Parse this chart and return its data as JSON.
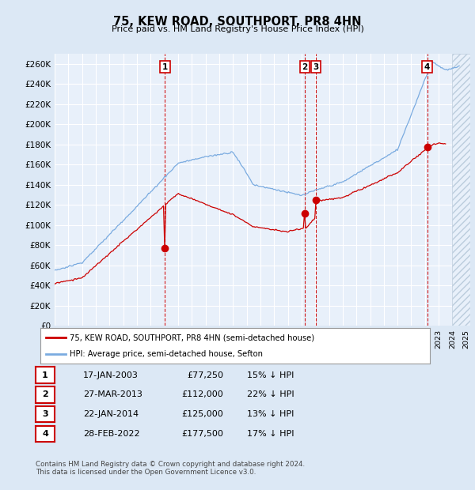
{
  "title": "75, KEW ROAD, SOUTHPORT, PR8 4HN",
  "subtitle": "Price paid vs. HM Land Registry's House Price Index (HPI)",
  "xlim_start": 1995.0,
  "xlim_end": 2025.3,
  "ylim": [
    0,
    270000
  ],
  "yticks": [
    0,
    20000,
    40000,
    60000,
    80000,
    100000,
    120000,
    140000,
    160000,
    180000,
    200000,
    220000,
    240000,
    260000
  ],
  "ytick_labels": [
    "£0",
    "£20K",
    "£40K",
    "£60K",
    "£80K",
    "£100K",
    "£120K",
    "£140K",
    "£160K",
    "£180K",
    "£200K",
    "£220K",
    "£240K",
    "£260K"
  ],
  "sale_dates": [
    2003.04,
    2013.24,
    2014.06,
    2022.16
  ],
  "sale_prices": [
    77250,
    112000,
    125000,
    177500
  ],
  "sale_labels": [
    "1",
    "2",
    "3",
    "4"
  ],
  "sale_date_strs": [
    "17-JAN-2003",
    "27-MAR-2013",
    "22-JAN-2014",
    "28-FEB-2022"
  ],
  "sale_price_strs": [
    "£77,250",
    "£112,000",
    "£125,000",
    "£177,500"
  ],
  "sale_hpi_strs": [
    "15% ↓ HPI",
    "22% ↓ HPI",
    "13% ↓ HPI",
    "17% ↓ HPI"
  ],
  "legend_line1": "75, KEW ROAD, SOUTHPORT, PR8 4HN (semi-detached house)",
  "legend_line2": "HPI: Average price, semi-detached house, Sefton",
  "footer": "Contains HM Land Registry data © Crown copyright and database right 2024.\nThis data is licensed under the Open Government Licence v3.0.",
  "line_color_red": "#cc0000",
  "line_color_blue": "#7aabe0",
  "bg_color": "#dce8f5",
  "plot_bg": "#e8f0fa",
  "grid_color": "#ffffff",
  "marker_box_color": "#cc0000",
  "hatch_color": "#bbccdd"
}
